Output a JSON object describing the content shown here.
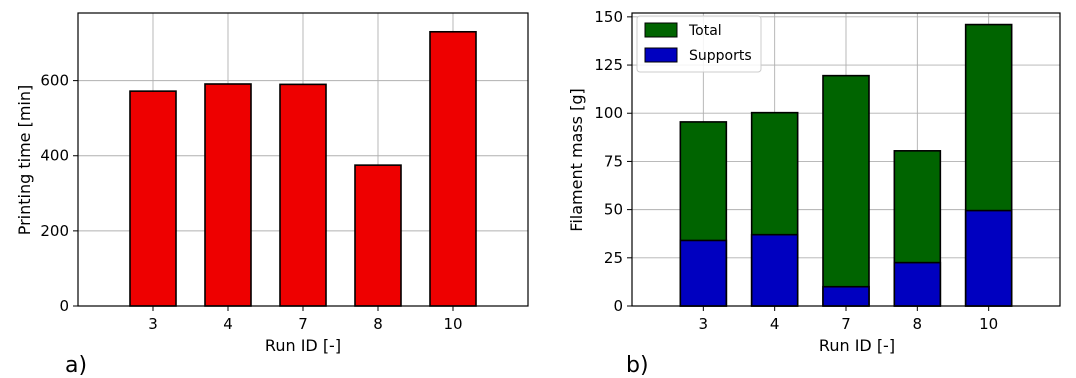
{
  "panels": [
    {
      "label": "a)"
    },
    {
      "label": "b)"
    }
  ],
  "chart_data": [
    {
      "type": "bar",
      "categories": [
        "3",
        "4",
        "7",
        "8",
        "10"
      ],
      "values": [
        572,
        591,
        590,
        375,
        730
      ],
      "xlabel": "Run ID [-]",
      "ylabel": "Printing time [min]",
      "ylim": [
        0,
        780
      ],
      "yticks": [
        0,
        200,
        400,
        600
      ],
      "grid": true,
      "color": "#ee0000"
    },
    {
      "type": "bar",
      "stacked": true,
      "categories": [
        "3",
        "4",
        "7",
        "8",
        "10"
      ],
      "series": [
        {
          "name": "Total",
          "values": [
            95.5,
            100.3,
            119.5,
            80.5,
            146
          ],
          "color": "#006400"
        },
        {
          "name": "Supports",
          "values": [
            34,
            37,
            10,
            22.5,
            49.5
          ],
          "color": "#0000c0"
        }
      ],
      "xlabel": "Run ID [-]",
      "ylabel": "Filament mass [g]",
      "ylim": [
        0,
        152
      ],
      "yticks": [
        0,
        25,
        50,
        75,
        100,
        125,
        150
      ],
      "grid": true,
      "legend": "top-left"
    }
  ]
}
